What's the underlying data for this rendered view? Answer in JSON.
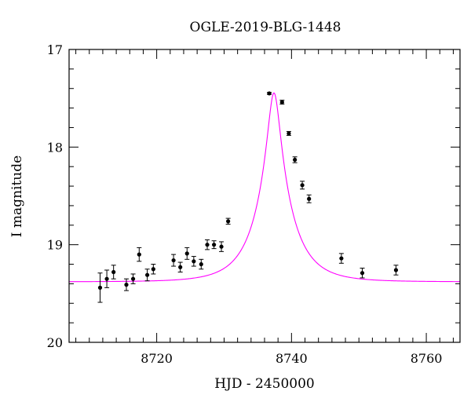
{
  "chart_data": {
    "type": "scatter",
    "title": "OGLE-2019-BLG-1448",
    "xlabel": "HJD - 2450000",
    "ylabel": "I magnitude",
    "xlim": [
      8707,
      8765
    ],
    "ylim": [
      17,
      20
    ],
    "y_inverted": true,
    "x_major_ticks": [
      8720,
      8740,
      8760
    ],
    "x_minor_tick_step": 2,
    "y_major_ticks": [
      17,
      18,
      19,
      20
    ],
    "y_minor_tick_step": 0.2,
    "grid": false,
    "series": [
      {
        "points": [
          {
            "x": 8711.6,
            "y": 19.44,
            "err": 0.15
          },
          {
            "x": 8712.6,
            "y": 19.35,
            "err": 0.09
          },
          {
            "x": 8713.6,
            "y": 19.28,
            "err": 0.07
          },
          {
            "x": 8715.5,
            "y": 19.41,
            "err": 0.06
          },
          {
            "x": 8716.5,
            "y": 19.35,
            "err": 0.05
          },
          {
            "x": 8717.4,
            "y": 19.1,
            "err": 0.07
          },
          {
            "x": 8718.6,
            "y": 19.31,
            "err": 0.06
          },
          {
            "x": 8719.5,
            "y": 19.25,
            "err": 0.05
          },
          {
            "x": 8722.5,
            "y": 19.16,
            "err": 0.06
          },
          {
            "x": 8723.5,
            "y": 19.23,
            "err": 0.05
          },
          {
            "x": 8724.5,
            "y": 19.09,
            "err": 0.06
          },
          {
            "x": 8725.5,
            "y": 19.17,
            "err": 0.05
          },
          {
            "x": 8726.6,
            "y": 19.2,
            "err": 0.05
          },
          {
            "x": 8727.5,
            "y": 19.0,
            "err": 0.05
          },
          {
            "x": 8728.5,
            "y": 19.0,
            "err": 0.04
          },
          {
            "x": 8729.6,
            "y": 19.02,
            "err": 0.05
          },
          {
            "x": 8730.6,
            "y": 18.76,
            "err": 0.03
          },
          {
            "x": 8736.7,
            "y": 17.45,
            "err": 0.01
          },
          {
            "x": 8738.6,
            "y": 17.54,
            "err": 0.02
          },
          {
            "x": 8739.6,
            "y": 17.86,
            "err": 0.02
          },
          {
            "x": 8740.5,
            "y": 18.13,
            "err": 0.03
          },
          {
            "x": 8741.6,
            "y": 18.39,
            "err": 0.04
          },
          {
            "x": 8742.6,
            "y": 18.53,
            "err": 0.04
          },
          {
            "x": 8747.4,
            "y": 19.14,
            "err": 0.05
          },
          {
            "x": 8750.5,
            "y": 19.29,
            "err": 0.05
          },
          {
            "x": 8755.5,
            "y": 19.26,
            "err": 0.05
          }
        ],
        "color": "#000000"
      },
      {
        "type": "line",
        "model": "microlensing",
        "t0": 8737.4,
        "tE": 5.0,
        "u0": 0.17,
        "baseline_mag": 19.38,
        "color": "#ff00ff"
      }
    ]
  }
}
